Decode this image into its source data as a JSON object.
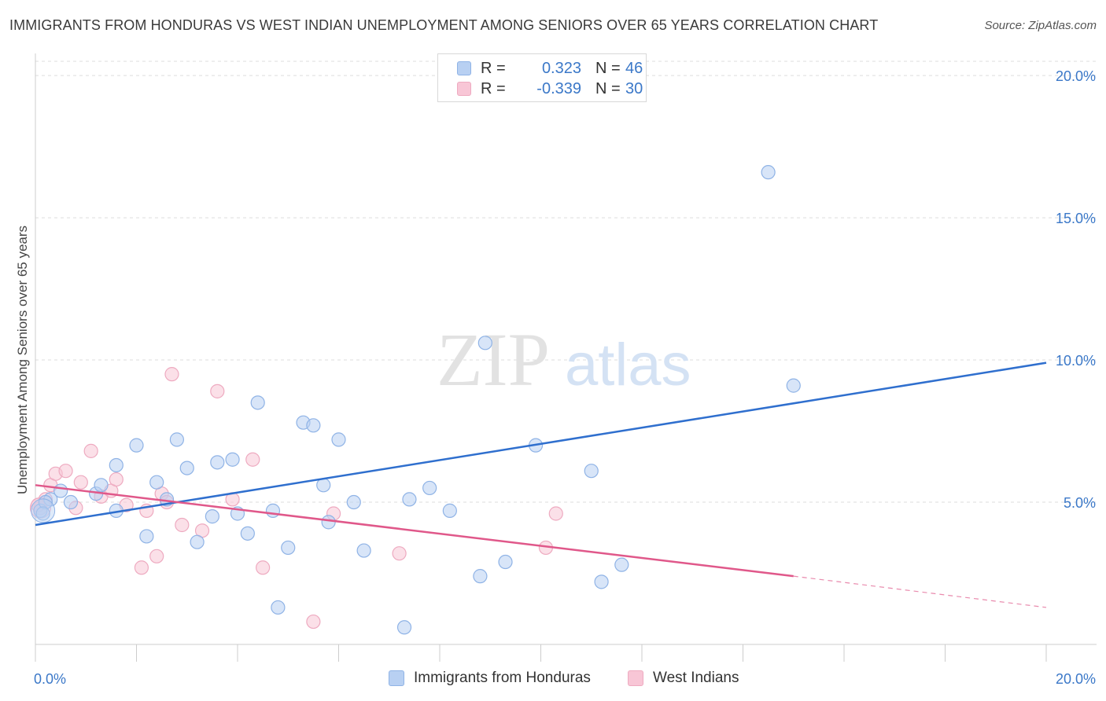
{
  "header": {
    "title": "IMMIGRANTS FROM HONDURAS VS WEST INDIAN UNEMPLOYMENT AMONG SENIORS OVER 65 YEARS CORRELATION CHART",
    "source": "Source: ZipAtlas.com"
  },
  "watermark": {
    "zip": "ZIP",
    "atlas": "atlas"
  },
  "legend": {
    "r_label": "R =",
    "n_label": "N =",
    "series": [
      {
        "r": "0.323",
        "n": "46"
      },
      {
        "r": "-0.339",
        "n": "30"
      }
    ]
  },
  "colors": {
    "blue_fill": "#b8d0f2",
    "blue_stroke": "#8fb3e6",
    "blue_line": "#2f6fce",
    "pink_fill": "#f8c6d6",
    "pink_stroke": "#eeaac0",
    "pink_line": "#e0588a",
    "tick_text": "#3b78c8",
    "grid": "#dddddd"
  },
  "chart_data": {
    "type": "scatter",
    "title": "IMMIGRANTS FROM HONDURAS VS WEST INDIAN UNEMPLOYMENT AMONG SENIORS OVER 65 YEARS CORRELATION CHART",
    "xlabel": "",
    "ylabel": "Unemployment Among Seniors over 65 years",
    "xlim": [
      0,
      20
    ],
    "ylim": [
      0,
      20.5
    ],
    "x_tick_labels": [
      "0.0%",
      "20.0%"
    ],
    "y_ticks": [
      5,
      10,
      15,
      20
    ],
    "y_tick_labels": [
      "5.0%",
      "10.0%",
      "15.0%",
      "20.0%"
    ],
    "grid": "horizontal dashed",
    "legend_position": "top-center",
    "series": [
      {
        "name": "Immigrants from Honduras",
        "color": "#b8d0f2",
        "trend": {
          "x": [
            0,
            20
          ],
          "y": [
            4.2,
            9.9
          ]
        },
        "points": [
          [
            0.1,
            4.7
          ],
          [
            0.3,
            5.1
          ],
          [
            0.5,
            5.4
          ],
          [
            0.7,
            5.0
          ],
          [
            1.2,
            5.3
          ],
          [
            1.3,
            5.6
          ],
          [
            1.6,
            6.3
          ],
          [
            1.6,
            4.7
          ],
          [
            2.0,
            7.0
          ],
          [
            2.2,
            3.8
          ],
          [
            2.4,
            5.7
          ],
          [
            2.6,
            5.1
          ],
          [
            2.8,
            7.2
          ],
          [
            3.0,
            6.2
          ],
          [
            3.2,
            3.6
          ],
          [
            3.5,
            4.5
          ],
          [
            3.6,
            6.4
          ],
          [
            3.9,
            6.5
          ],
          [
            4.0,
            4.6
          ],
          [
            4.2,
            3.9
          ],
          [
            4.4,
            8.5
          ],
          [
            4.7,
            4.7
          ],
          [
            4.8,
            1.3
          ],
          [
            5.0,
            3.4
          ],
          [
            5.3,
            7.8
          ],
          [
            5.5,
            7.7
          ],
          [
            5.7,
            5.6
          ],
          [
            5.8,
            4.3
          ],
          [
            6.0,
            7.2
          ],
          [
            6.3,
            5.0
          ],
          [
            6.5,
            3.3
          ],
          [
            7.3,
            0.6
          ],
          [
            7.4,
            5.1
          ],
          [
            7.8,
            5.5
          ],
          [
            8.2,
            4.7
          ],
          [
            8.8,
            2.4
          ],
          [
            8.9,
            10.6
          ],
          [
            9.3,
            2.9
          ],
          [
            9.9,
            7.0
          ],
          [
            11.0,
            6.1
          ],
          [
            11.2,
            2.2
          ],
          [
            11.6,
            2.8
          ],
          [
            14.5,
            16.6
          ],
          [
            15.0,
            9.1
          ],
          [
            0.2,
            5.0
          ],
          [
            0.15,
            4.6
          ]
        ]
      },
      {
        "name": "West Indians",
        "color": "#f8c6d6",
        "trend": {
          "x": [
            0,
            15
          ],
          "y": [
            5.6,
            2.4
          ]
        },
        "trend_dashed": {
          "x": [
            15,
            20
          ],
          "y": [
            2.4,
            1.3
          ]
        },
        "points": [
          [
            0.1,
            4.8
          ],
          [
            0.3,
            5.6
          ],
          [
            0.4,
            6.0
          ],
          [
            0.6,
            6.1
          ],
          [
            0.8,
            4.8
          ],
          [
            0.9,
            5.7
          ],
          [
            1.1,
            6.8
          ],
          [
            1.3,
            5.2
          ],
          [
            1.5,
            5.4
          ],
          [
            1.6,
            5.8
          ],
          [
            1.8,
            4.9
          ],
          [
            2.1,
            2.7
          ],
          [
            2.2,
            4.7
          ],
          [
            2.4,
            3.1
          ],
          [
            2.5,
            5.3
          ],
          [
            2.6,
            5.0
          ],
          [
            2.7,
            9.5
          ],
          [
            2.9,
            4.2
          ],
          [
            3.3,
            4.0
          ],
          [
            3.6,
            8.9
          ],
          [
            3.9,
            5.1
          ],
          [
            4.3,
            6.5
          ],
          [
            4.5,
            2.7
          ],
          [
            5.5,
            0.8
          ],
          [
            5.9,
            4.6
          ],
          [
            7.2,
            3.2
          ],
          [
            10.1,
            3.4
          ],
          [
            10.3,
            4.6
          ],
          [
            0.2,
            5.1
          ],
          [
            0.05,
            4.9
          ]
        ]
      }
    ]
  },
  "bottom_legend": [
    {
      "label": "Immigrants from Honduras"
    },
    {
      "label": "West Indians"
    }
  ]
}
